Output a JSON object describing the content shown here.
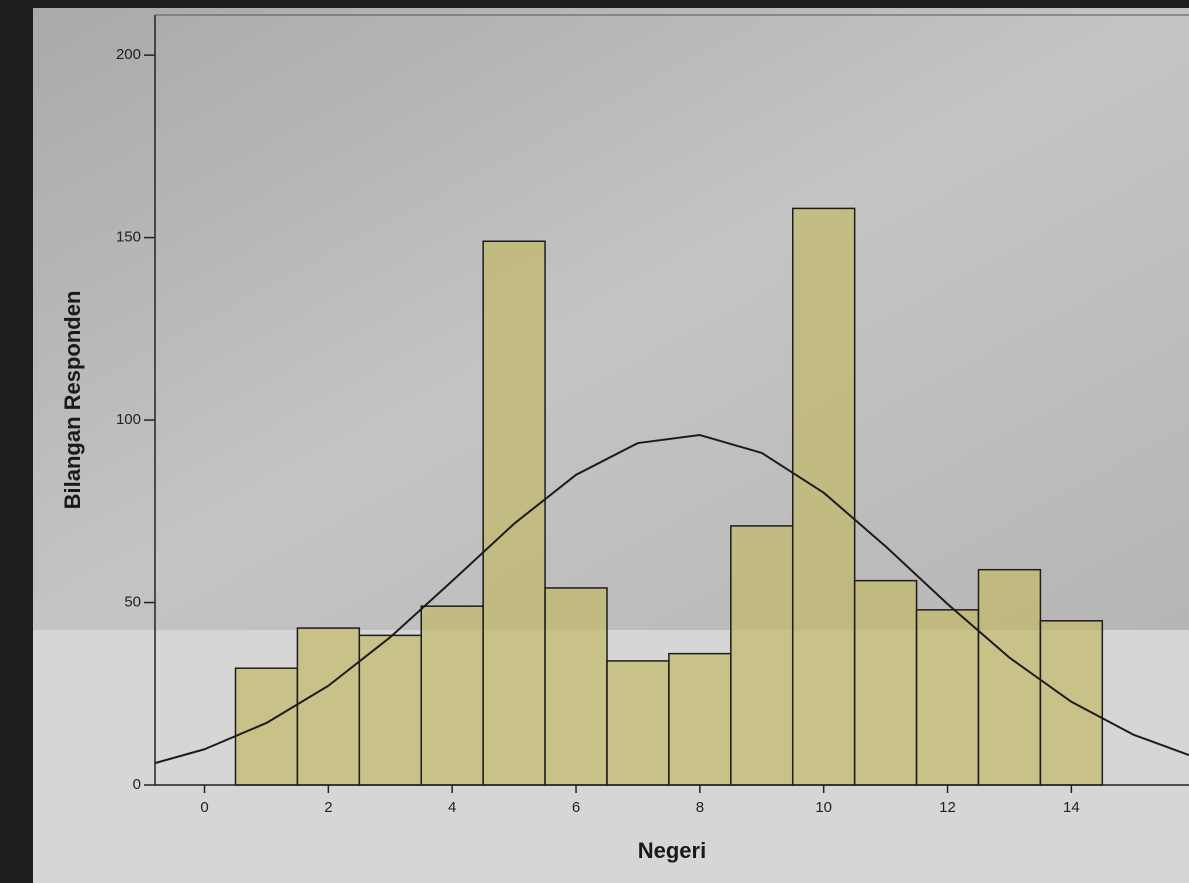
{
  "chart_data": {
    "type": "histogram",
    "x_label": "Negeri",
    "y_label": "Bilangan Responden",
    "bins": [
      0.5,
      1.5,
      2.5,
      3.5,
      4.5,
      5.5,
      6.5,
      7.5,
      8.5,
      9.5,
      10.5,
      11.5,
      12.5,
      13.5,
      14.5
    ],
    "values": [
      32,
      43,
      41,
      49,
      149,
      54,
      34,
      36,
      71,
      158,
      56,
      48,
      59,
      45
    ],
    "color": "#c2b86a",
    "curve": {
      "x": [
        -0.8,
        0,
        1,
        2,
        3,
        4,
        5,
        6,
        7,
        8,
        9,
        10,
        11,
        12,
        13,
        14,
        15,
        15.9
      ],
      "values": [
        6.0,
        9.8,
        17.0,
        27.2,
        40.5,
        55.9,
        71.6,
        85.0,
        93.7,
        95.9,
        91.0,
        80.1,
        65.4,
        49.6,
        34.9,
        22.8,
        13.8,
        8.2
      ]
    },
    "xlim": [
      -0.8,
      15.9
    ],
    "ylim": [
      0,
      211
    ],
    "xticks": [
      0,
      2,
      4,
      6,
      8,
      10,
      12,
      14
    ],
    "yticks": [
      0,
      50,
      100,
      150,
      200
    ]
  }
}
